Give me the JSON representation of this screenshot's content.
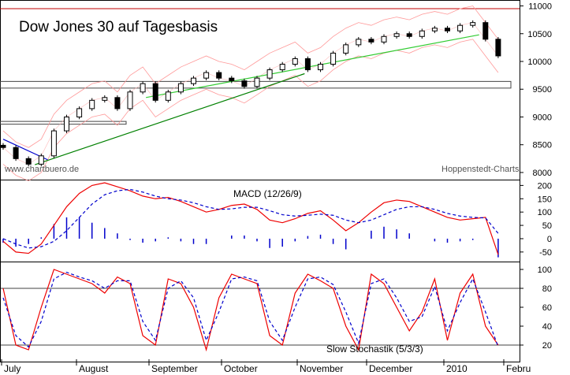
{
  "chart_data": [
    {
      "type": "candlestick",
      "title": "Dow Jones 30 auf Tagesbasis",
      "watermark_left": "www.chartbuero.de",
      "watermark_right": "Hoppenstedt-Charts",
      "ylim": [
        7900,
        11050
      ],
      "y_ticks": [
        8000,
        8500,
        9000,
        9500,
        10000,
        10500,
        11000
      ],
      "y_tick_labels": [
        "8000",
        "8500",
        "9000",
        "9500",
        "10000",
        "10500",
        "11000"
      ],
      "series": [
        {
          "name": "",
          "x": [
            0,
            4,
            8,
            12,
            16,
            20,
            24,
            28,
            32,
            36,
            40,
            44,
            48,
            52,
            56,
            60,
            64,
            68,
            72,
            76,
            80,
            84,
            88,
            92,
            96,
            100,
            104,
            108,
            112,
            116,
            120,
            124,
            128,
            132,
            136,
            140,
            144,
            148,
            152,
            156
          ],
          "close": [
            8450,
            8250,
            8150,
            8300,
            8750,
            9000,
            9150,
            9300,
            9350,
            9150,
            9450,
            9600,
            9300,
            9450,
            9600,
            9700,
            9800,
            9700,
            9650,
            9550,
            9700,
            9850,
            9950,
            10050,
            9850,
            9950,
            10150,
            10300,
            10400,
            10350,
            10450,
            10500,
            10450,
            10550,
            10600,
            10550,
            10650,
            10700,
            10400,
            10100
          ]
        }
      ],
      "resistance_line": 10950,
      "support_zone": [
        9520,
        9640
      ],
      "old_support_zone": [
        8870,
        8920
      ],
      "trendlines": [
        {
          "color": "green",
          "from": [
            10,
            8140
          ],
          "to": [
            95,
            9780
          ]
        },
        {
          "color": "lightgreen",
          "from": [
            45,
            9350
          ],
          "to": [
            150,
            10480
          ]
        },
        {
          "color": "blue",
          "from": [
            0,
            8600
          ],
          "to": [
            14,
            8230
          ]
        }
      ],
      "grid": false
    },
    {
      "type": "line",
      "title": "MACD (12/26/9)",
      "ylim": [
        -80,
        210
      ],
      "y_ticks": [
        -50,
        0,
        50,
        100,
        150,
        200
      ],
      "y_tick_labels": [
        "-50",
        "0",
        "50",
        "100",
        "150",
        "200"
      ],
      "series": [
        {
          "name": "",
          "x": [
            0,
            4,
            8,
            12,
            16,
            20,
            24,
            28,
            32,
            36,
            40,
            44,
            48,
            52,
            56,
            60,
            64,
            68,
            72,
            76,
            80,
            84,
            88,
            92,
            96,
            100,
            104,
            108,
            112,
            116,
            120,
            124,
            128,
            132,
            136,
            140,
            144,
            148,
            152,
            156
          ],
          "values": [
            -10,
            -50,
            -55,
            -20,
            50,
            120,
            170,
            200,
            210,
            195,
            180,
            160,
            150,
            155,
            140,
            120,
            100,
            110,
            125,
            130,
            110,
            70,
            60,
            75,
            95,
            105,
            70,
            30,
            60,
            100,
            135,
            145,
            140,
            120,
            100,
            80,
            70,
            75,
            80,
            -60
          ]
        },
        {
          "name": "",
          "x": [
            0,
            4,
            8,
            12,
            16,
            20,
            24,
            28,
            32,
            36,
            40,
            44,
            48,
            52,
            56,
            60,
            64,
            68,
            72,
            76,
            80,
            84,
            88,
            92,
            96,
            100,
            104,
            108,
            112,
            116,
            120,
            124,
            128,
            132,
            136,
            140,
            144,
            148,
            152,
            156
          ],
          "values": [
            0,
            -20,
            -35,
            -30,
            -10,
            30,
            80,
            130,
            165,
            180,
            185,
            175,
            160,
            150,
            145,
            135,
            120,
            110,
            112,
            118,
            118,
            105,
            90,
            85,
            88,
            92,
            88,
            70,
            60,
            70,
            90,
            110,
            120,
            120,
            110,
            95,
            85,
            80,
            78,
            20
          ]
        }
      ],
      "histogram": [
        -15,
        -30,
        -20,
        5,
        55,
        80,
        80,
        60,
        40,
        20,
        -5,
        -15,
        -10,
        5,
        -10,
        -20,
        -20,
        0,
        12,
        12,
        -10,
        -35,
        -30,
        -10,
        10,
        15,
        -20,
        -40,
        0,
        30,
        45,
        35,
        20,
        0,
        -10,
        -15,
        -10,
        -5,
        0,
        -70
      ]
    },
    {
      "type": "line",
      "title": "Slow Stochastik (5/3/3)",
      "ylim": [
        5,
        105
      ],
      "y_ticks": [
        20,
        40,
        60,
        80,
        100
      ],
      "y_tick_labels": [
        "20",
        "40",
        "60",
        "80",
        "100"
      ],
      "reference_lines": [
        80,
        20
      ],
      "series": [
        {
          "name": "",
          "x": [
            0,
            4,
            8,
            12,
            16,
            20,
            24,
            28,
            32,
            36,
            40,
            44,
            48,
            52,
            56,
            60,
            64,
            68,
            72,
            76,
            80,
            84,
            88,
            92,
            96,
            100,
            104,
            108,
            112,
            116,
            120,
            124,
            128,
            132,
            136,
            140,
            144,
            148,
            152,
            156
          ],
          "values": [
            80,
            20,
            15,
            60,
            100,
            95,
            90,
            85,
            75,
            92,
            85,
            30,
            20,
            90,
            85,
            60,
            15,
            70,
            95,
            90,
            85,
            30,
            20,
            75,
            95,
            88,
            80,
            40,
            15,
            95,
            85,
            60,
            35,
            55,
            90,
            25,
            75,
            95,
            40,
            20
          ]
        },
        {
          "name": "",
          "x": [
            0,
            4,
            8,
            12,
            16,
            20,
            24,
            28,
            32,
            36,
            40,
            44,
            48,
            52,
            56,
            60,
            64,
            68,
            72,
            76,
            80,
            84,
            88,
            92,
            96,
            100,
            104,
            108,
            112,
            116,
            120,
            124,
            128,
            132,
            136,
            140,
            144,
            148,
            152,
            156
          ],
          "values": [
            70,
            30,
            18,
            45,
            90,
            97,
            92,
            88,
            80,
            88,
            88,
            45,
            25,
            80,
            88,
            70,
            25,
            55,
            90,
            92,
            88,
            45,
            25,
            60,
            90,
            92,
            84,
            55,
            22,
            85,
            90,
            70,
            45,
            50,
            82,
            35,
            65,
            90,
            55,
            18
          ]
        }
      ]
    }
  ],
  "x_axis": {
    "labels": [
      "July",
      "August",
      "September",
      "October",
      "November",
      "December",
      "2010",
      "Febru"
    ]
  },
  "colors": {
    "up_candle": "#ffffff",
    "down_candle": "#000000",
    "resistance": "#c00000",
    "envelope": "#ff9999",
    "trend_green": "#008000",
    "trend_lightgreen": "#33cc33",
    "trend_blue": "#0000cc",
    "macd_line": "#ee0000",
    "signal_line": "#0000cc",
    "histogram": "#0000cc"
  }
}
